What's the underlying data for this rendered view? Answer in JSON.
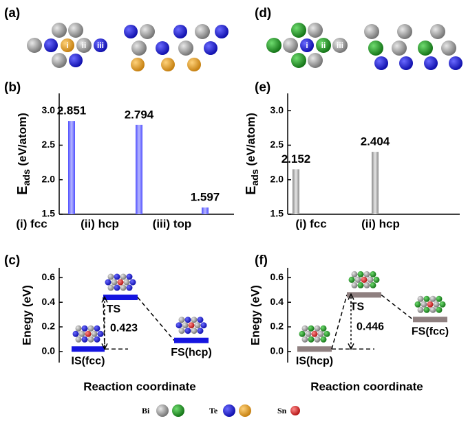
{
  "panels": {
    "a": {
      "label": "(a)",
      "sites": [
        "i",
        "ii",
        "iii"
      ]
    },
    "d": {
      "label": "(d)",
      "sites": [
        "i",
        "ii",
        "iii"
      ]
    }
  },
  "legend": [
    "Bi",
    "Te",
    "Sn"
  ],
  "chart_data": [
    {
      "type": "bar",
      "panel": "(b)",
      "ylabel": {
        "main": "E",
        "sub": "ads",
        "unit": " (eV/atom)"
      },
      "categories": [
        "(i) fcc",
        "(ii) hcp",
        "(iii) top"
      ],
      "values": [
        2.851,
        2.794,
        1.597
      ],
      "color": "barBlue",
      "ylim": [
        1.5,
        3.25
      ],
      "yticks": [
        1.5,
        {
          "value": 2,
          "label": "2.0"
        },
        2.5,
        {
          "value": 3,
          "label": "3.0"
        }
      ]
    },
    {
      "type": "bar",
      "panel": "(e)",
      "ylabel": {
        "main": "E",
        "sub": "ads",
        "unit": " (eV/atom)"
      },
      "categories": [
        "(i) fcc",
        "(ii) hcp",
        null
      ],
      "values": [
        2.152,
        2.404,
        null
      ],
      "color": "barGray",
      "ylim": [
        1.5,
        3.25
      ],
      "yticks": [
        1.5,
        {
          "value": 2,
          "label": "2.0"
        },
        2.5,
        {
          "value": 3,
          "label": "3.0"
        }
      ]
    },
    {
      "type": "energy",
      "panel": "(c)",
      "ylabel": "Enegy (eV)",
      "xlabel": "Reaction coordinate",
      "categories": [
        "IS(fcc)",
        "TS",
        "FS(hcp)"
      ],
      "values": [
        0.02,
        0.44,
        0.09
      ],
      "barrier": 0.423,
      "color": "#1515e0",
      "ylim": [
        -0.09,
        0.68
      ],
      "yticks": [
        {
          "value": 0,
          "label": "0.0"
        },
        0.2,
        0.4,
        0.6
      ]
    },
    {
      "type": "energy",
      "panel": "(f)",
      "ylabel": "Enegy (eV)",
      "xlabel": "Reaction coordinate",
      "categories": [
        "IS(hcp)",
        "TS",
        "FS(fcc)"
      ],
      "values": [
        0.02,
        0.46,
        0.26
      ],
      "barrier": 0.446,
      "color": "#8f8080",
      "ylim": [
        -0.09,
        0.68
      ],
      "yticks": [
        {
          "value": 0,
          "label": "0.0"
        },
        0.2,
        0.4,
        0.6
      ]
    }
  ]
}
